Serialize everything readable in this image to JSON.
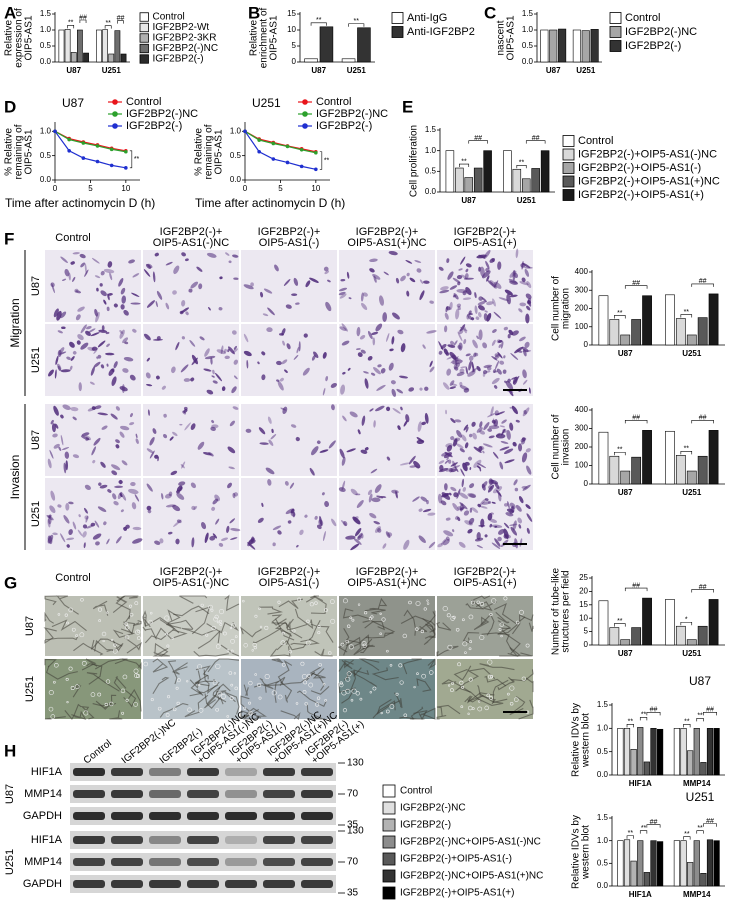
{
  "panel_labels": [
    "A",
    "B",
    "C",
    "D",
    "E",
    "F",
    "G",
    "H"
  ],
  "micrographs": {
    "columns": [
      [
        "Control"
      ],
      [
        "IGF2BP2(-)+",
        "OIP5-AS1(-)NC"
      ],
      [
        "IGF2BP2(-)+",
        "OIP5-AS1(-)"
      ],
      [
        "IGF2BP2(-)+",
        "OIP5-AS1(+)NC"
      ],
      [
        "IGF2BP2(-)+",
        "OIP5-AS1(+)"
      ]
    ],
    "cell_lines": [
      "U87",
      "U251"
    ],
    "assays": [
      "Migration",
      "Invasion"
    ]
  },
  "blot": {
    "lanes": [
      [
        "Control"
      ],
      [
        "IGF2BP2(-)NC"
      ],
      [
        "IGF2BP2(-)"
      ],
      [
        "IGF2BP2(-)NC",
        "+OIP5-AS1(-)NC"
      ],
      [
        "IGF2BP2(-)",
        "+OIP5-AS1(-)"
      ],
      [
        "IGF2BP2(-)NC",
        "+OIP5-AS1(+)NC"
      ],
      [
        "IGF2BP2(-)",
        "+OIP5-AS1(+)"
      ]
    ],
    "proteins": [
      "HIF1A",
      "MMP14",
      "GAPDH"
    ],
    "cell_lines": [
      "U87",
      "U251"
    ],
    "markers": [
      "130",
      "70",
      "35"
    ]
  },
  "chart_data": [
    {
      "type": "bar",
      "ylabel": [
        "Relative",
        "expression of",
        "OIP5-AS1"
      ],
      "categories": [
        "U87",
        "U251"
      ],
      "series": [
        {
          "name": "Control",
          "color": "#ffffff",
          "values": [
            1.0,
            1.0
          ]
        },
        {
          "name": "IGF2BP2-Wt",
          "color": "#e6e6e6",
          "values": [
            1.02,
            1.01
          ]
        },
        {
          "name": "IGF2BP2-3KR",
          "color": "#b0b0b0",
          "values": [
            0.3,
            0.25
          ]
        },
        {
          "name": "IGF2BP2(-)NC",
          "color": "#6e6e6e",
          "values": [
            1.0,
            0.98
          ]
        },
        {
          "name": "IGF2BP2(-)",
          "color": "#2b2b2b",
          "values": [
            0.28,
            0.25
          ]
        }
      ],
      "ylim": [
        0,
        1.5
      ],
      "yticks": [
        {
          "value": 0,
          "label": "0.0"
        },
        0.5,
        {
          "value": 1,
          "label": "1.0"
        },
        1.5
      ],
      "significance": [
        {
          "label": "**",
          "category": 0,
          "bars": [
            1,
            2
          ]
        },
        {
          "label": "##",
          "category": 0,
          "bars": [
            3,
            4
          ]
        },
        {
          "label": "**",
          "category": 1,
          "bars": [
            1,
            2
          ]
        },
        {
          "label": "##",
          "category": 1,
          "bars": [
            3,
            4
          ]
        }
      ]
    },
    {
      "type": "bar",
      "ylabel": [
        "Relative",
        "enrichment of",
        "OIP5-AS1"
      ],
      "categories": [
        "U87",
        "U251"
      ],
      "series": [
        {
          "name": "Anti-IgG",
          "color": "#ffffff",
          "values": [
            1,
            1
          ]
        },
        {
          "name": "Anti-IGF2BP2",
          "color": "#333333",
          "values": [
            11,
            10.7
          ]
        }
      ],
      "ylim": [
        0,
        15
      ],
      "yticks": [
        0,
        5,
        10,
        15
      ],
      "significance": [
        {
          "label": "**",
          "category": 0,
          "bars": [
            0,
            1
          ]
        },
        {
          "label": "**",
          "category": 1,
          "bars": [
            0,
            1
          ]
        }
      ]
    },
    {
      "type": "bar",
      "ylabel": [
        "nascent",
        "OIP5-AS1"
      ],
      "categories": [
        "U87",
        "U251"
      ],
      "series": [
        {
          "name": "Control",
          "color": "#ffffff",
          "values": [
            1.0,
            1.0
          ]
        },
        {
          "name": "IGF2BP2(-)NC",
          "color": "#a6a6a6",
          "values": [
            1.0,
            0.98
          ]
        },
        {
          "name": "IGF2BP2(-)",
          "color": "#333333",
          "values": [
            1.03,
            1.02
          ]
        }
      ],
      "ylim": [
        0,
        1.5
      ],
      "yticks": [
        {
          "value": 0,
          "label": "0.0"
        },
        0.5,
        {
          "value": 1,
          "label": "1.0"
        },
        1.5
      ]
    },
    {
      "type": "line",
      "title": "U87",
      "ylabel": [
        "% Relative",
        "remaining of",
        "OIP5-AS1"
      ],
      "xlabel": "Time after actinomycin D (h)",
      "x": [
        0,
        2,
        4,
        6,
        8,
        10
      ],
      "xlim": [
        0,
        12
      ],
      "xticks": [
        0,
        5,
        10
      ],
      "ylim": [
        0,
        1.15
      ],
      "yticks": [
        {
          "value": 0,
          "label": "0.0"
        },
        0.5,
        {
          "value": 1,
          "label": "1.0"
        }
      ],
      "series": [
        {
          "name": "Control",
          "color": "#e8141b",
          "values": [
            1.0,
            0.85,
            0.78,
            0.72,
            0.65,
            0.6
          ]
        },
        {
          "name": "IGF2BP2(-)NC",
          "color": "#2ca02c",
          "values": [
            1.0,
            0.83,
            0.76,
            0.7,
            0.63,
            0.58
          ]
        },
        {
          "name": "IGF2BP2(-)",
          "color": "#1f2fd0",
          "values": [
            1.0,
            0.6,
            0.45,
            0.38,
            0.3,
            0.25
          ]
        }
      ],
      "annotation": "**"
    },
    {
      "type": "line",
      "title": "U251",
      "ylabel": [
        "% Relative",
        "remaining of",
        "OIP5-AS1"
      ],
      "xlabel": "Time after actinomycin D (h)",
      "x": [
        0,
        2,
        4,
        6,
        8,
        10
      ],
      "xlim": [
        0,
        12
      ],
      "xticks": [
        0,
        5,
        10
      ],
      "ylim": [
        0,
        1.15
      ],
      "yticks": [
        {
          "value": 0,
          "label": "0.0"
        },
        0.5,
        {
          "value": 1,
          "label": "1.0"
        }
      ],
      "series": [
        {
          "name": "Control",
          "color": "#e8141b",
          "values": [
            1.0,
            0.84,
            0.77,
            0.7,
            0.64,
            0.58
          ]
        },
        {
          "name": "IGF2BP2(-)NC",
          "color": "#2ca02c",
          "values": [
            1.0,
            0.82,
            0.75,
            0.69,
            0.62,
            0.56
          ]
        },
        {
          "name": "IGF2BP2(-)",
          "color": "#1f2fd0",
          "values": [
            1.0,
            0.58,
            0.43,
            0.36,
            0.28,
            0.22
          ]
        }
      ],
      "annotation": "**"
    },
    {
      "type": "bar",
      "ylabel": [
        "Cell proliferation"
      ],
      "categories": [
        "U87",
        "U251"
      ],
      "series": [
        {
          "name": "Control",
          "color": "#ffffff",
          "values": [
            1.0,
            1.0
          ]
        },
        {
          "name": "IGF2BP2(-)+OIP5-AS1(-)NC",
          "color": "#d9d9d9",
          "values": [
            0.58,
            0.55
          ]
        },
        {
          "name": "IGF2BP2(-)+OIP5-AS1(-)",
          "color": "#a6a6a6",
          "values": [
            0.35,
            0.32
          ]
        },
        {
          "name": "IGF2BP2(-)+OIP5-AS1(+)NC",
          "color": "#595959",
          "values": [
            0.58,
            0.57
          ]
        },
        {
          "name": "IGF2BP2(-)+OIP5-AS1(+)",
          "color": "#1a1a1a",
          "values": [
            1.0,
            1.0
          ]
        }
      ],
      "ylim": [
        0,
        1.5
      ],
      "yticks": [
        {
          "value": 0,
          "label": "0.0"
        },
        0.5,
        {
          "value": 1,
          "label": "1.0"
        },
        1.5
      ],
      "significance": [
        {
          "label": "**",
          "category": 0,
          "bars": [
            1,
            2
          ]
        },
        {
          "label": "##",
          "category": 0,
          "bars": [
            2,
            4
          ]
        },
        {
          "label": "**",
          "category": 1,
          "bars": [
            1,
            2
          ]
        },
        {
          "label": "##",
          "category": 1,
          "bars": [
            2,
            4
          ]
        }
      ]
    },
    {
      "type": "bar",
      "ylabel": [
        "Cell number of",
        "migration"
      ],
      "categories": [
        "U87",
        "U251"
      ],
      "series": [
        {
          "color": "#ffffff",
          "values": [
            270,
            275
          ]
        },
        {
          "color": "#d9d9d9",
          "values": [
            140,
            145
          ]
        },
        {
          "color": "#a6a6a6",
          "values": [
            55,
            55
          ]
        },
        {
          "color": "#595959",
          "values": [
            140,
            150
          ]
        },
        {
          "color": "#1a1a1a",
          "values": [
            270,
            280
          ]
        }
      ],
      "ylim": [
        0,
        400
      ],
      "yticks": [
        0,
        100,
        200,
        300,
        400
      ],
      "significance": [
        {
          "label": "**",
          "category": 0,
          "bars": [
            1,
            2
          ]
        },
        {
          "label": "##",
          "category": 0,
          "bars": [
            2,
            4
          ]
        },
        {
          "label": "**",
          "category": 1,
          "bars": [
            1,
            2
          ]
        },
        {
          "label": "##",
          "category": 1,
          "bars": [
            2,
            4
          ]
        }
      ]
    },
    {
      "type": "bar",
      "ylabel": [
        "Cell number of",
        "invasion"
      ],
      "categories": [
        "U87",
        "U251"
      ],
      "series": [
        {
          "color": "#ffffff",
          "values": [
            280,
            285
          ]
        },
        {
          "color": "#d9d9d9",
          "values": [
            150,
            155
          ]
        },
        {
          "color": "#a6a6a6",
          "values": [
            70,
            70
          ]
        },
        {
          "color": "#595959",
          "values": [
            145,
            150
          ]
        },
        {
          "color": "#1a1a1a",
          "values": [
            290,
            290
          ]
        }
      ],
      "ylim": [
        0,
        400
      ],
      "yticks": [
        0,
        100,
        200,
        300,
        400
      ],
      "significance": [
        {
          "label": "**",
          "category": 0,
          "bars": [
            1,
            2
          ]
        },
        {
          "label": "##",
          "category": 0,
          "bars": [
            2,
            4
          ]
        },
        {
          "label": "**",
          "category": 1,
          "bars": [
            1,
            2
          ]
        },
        {
          "label": "##",
          "category": 1,
          "bars": [
            2,
            4
          ]
        }
      ]
    },
    {
      "type": "bar",
      "ylabel": [
        "Number of tube-like",
        "structures per field"
      ],
      "categories": [
        "U87",
        "U251"
      ],
      "series": [
        {
          "color": "#ffffff",
          "values": [
            16.5,
            17
          ]
        },
        {
          "color": "#d9d9d9",
          "values": [
            6.5,
            7
          ]
        },
        {
          "color": "#a6a6a6",
          "values": [
            2,
            2
          ]
        },
        {
          "color": "#595959",
          "values": [
            6.5,
            7
          ]
        },
        {
          "color": "#1a1a1a",
          "values": [
            17.5,
            17
          ]
        }
      ],
      "ylim": [
        0,
        25
      ],
      "yticks": [
        0,
        5,
        10,
        15,
        20,
        25
      ],
      "significance": [
        {
          "label": "**",
          "category": 0,
          "bars": [
            1,
            2
          ]
        },
        {
          "label": "##",
          "category": 0,
          "bars": [
            2,
            4
          ]
        },
        {
          "label": "*",
          "category": 1,
          "bars": [
            1,
            2
          ]
        },
        {
          "label": "##",
          "category": 1,
          "bars": [
            2,
            4
          ]
        }
      ]
    },
    {
      "type": "bar",
      "title": "U87",
      "ylabel": [
        "Relative IDVs by",
        "western blot"
      ],
      "categories": [
        "HIF1A",
        "MMP14"
      ],
      "series": [
        {
          "name": "Control",
          "color": "#ffffff",
          "values": [
            1.0,
            1.0
          ]
        },
        {
          "name": "IGF2BP2(-)NC",
          "color": "#e0e0e0",
          "values": [
            1.0,
            1.0
          ]
        },
        {
          "name": "IGF2BP2(-)",
          "color": "#b3b3b3",
          "values": [
            0.55,
            0.52
          ]
        },
        {
          "name": "IGF2BP2(-)NC+OIP5-AS1(-)NC",
          "color": "#8c8c8c",
          "values": [
            1.02,
            1.0
          ]
        },
        {
          "name": "IGF2BP2(-)+OIP5-AS1(-)",
          "color": "#595959",
          "values": [
            0.28,
            0.27
          ]
        },
        {
          "name": "IGF2BP2(-)NC+OIP5-AS1(+)NC",
          "color": "#333333",
          "values": [
            1.0,
            1.0
          ]
        },
        {
          "name": "IGF2BP2(-)+OIP5-AS1(+)",
          "color": "#000000",
          "values": [
            0.98,
            1.0
          ]
        }
      ],
      "ylim": [
        0,
        1.5
      ],
      "yticks": [
        {
          "value": 0,
          "label": "0.0"
        },
        0.5,
        {
          "value": 1,
          "label": "1.0"
        },
        1.5
      ],
      "significance": [
        {
          "label": "**",
          "category": 0,
          "bars": [
            1,
            2
          ]
        },
        {
          "label": "**",
          "category": 0,
          "bars": [
            3,
            4
          ]
        },
        {
          "label": "##",
          "category": 0,
          "bars": [
            4,
            6
          ]
        },
        {
          "label": "**",
          "category": 1,
          "bars": [
            1,
            2
          ]
        },
        {
          "label": "**",
          "category": 1,
          "bars": [
            3,
            4
          ]
        },
        {
          "label": "##",
          "category": 1,
          "bars": [
            4,
            6
          ]
        }
      ]
    },
    {
      "type": "bar",
      "title": "U251",
      "ylabel": [
        "Relative IDVs by",
        "western blot"
      ],
      "categories": [
        "HIF1A",
        "MMP14"
      ],
      "series": [
        {
          "color": "#ffffff",
          "values": [
            1.0,
            1.0
          ]
        },
        {
          "color": "#e0e0e0",
          "values": [
            1.02,
            1.0
          ]
        },
        {
          "color": "#b3b3b3",
          "values": [
            0.55,
            0.52
          ]
        },
        {
          "color": "#8c8c8c",
          "values": [
            1.0,
            1.0
          ]
        },
        {
          "color": "#595959",
          "values": [
            0.3,
            0.28
          ]
        },
        {
          "color": "#333333",
          "values": [
            1.0,
            1.02
          ]
        },
        {
          "color": "#000000",
          "values": [
            0.98,
            1.0
          ]
        }
      ],
      "ylim": [
        0,
        1.5
      ],
      "yticks": [
        {
          "value": 0,
          "label": "0.0"
        },
        0.5,
        {
          "value": 1,
          "label": "1.0"
        },
        1.5
      ],
      "significance": [
        {
          "label": "**",
          "category": 0,
          "bars": [
            1,
            2
          ]
        },
        {
          "label": "**",
          "category": 0,
          "bars": [
            3,
            4
          ]
        },
        {
          "label": "##",
          "category": 0,
          "bars": [
            4,
            6
          ]
        },
        {
          "label": "**",
          "category": 1,
          "bars": [
            1,
            2
          ]
        },
        {
          "label": "**",
          "category": 1,
          "bars": [
            3,
            4
          ]
        },
        {
          "label": "##",
          "category": 1,
          "bars": [
            4,
            6
          ]
        }
      ]
    }
  ]
}
